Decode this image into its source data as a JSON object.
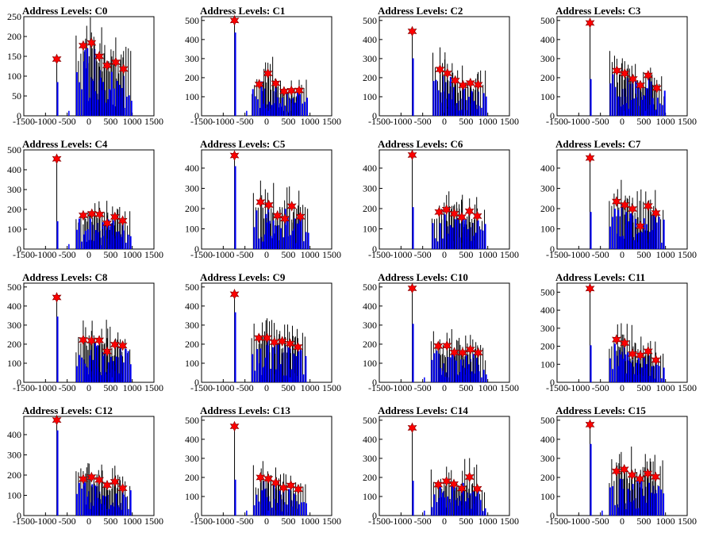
{
  "figure": {
    "bar_color": "#0000ff",
    "outline_color": "#000000",
    "marker_color": "#ff0000",
    "marker_stroke": "#880000"
  },
  "chart_data": [
    {
      "type": "bar",
      "title": "Address Levels: C0",
      "xlim": [
        -1500,
        1500
      ],
      "ylim": [
        0,
        250
      ],
      "xticks": [
        "-1500",
        "-1000",
        "-500",
        "0",
        "500",
        "1000",
        "1500"
      ],
      "yticks": [
        "0",
        "50",
        "100",
        "150",
        "200",
        "250"
      ],
      "peaks": [
        {
          "x": -740,
          "y": 143
        },
        {
          "x": -130,
          "y": 177
        },
        {
          "x": 60,
          "y": 184
        },
        {
          "x": 240,
          "y": 150
        },
        {
          "x": 420,
          "y": 127
        },
        {
          "x": 620,
          "y": 135
        },
        {
          "x": 800,
          "y": 118
        }
      ]
    },
    {
      "type": "bar",
      "title": "Address Levels: C1",
      "xlim": [
        -1500,
        1500
      ],
      "ylim": [
        0,
        520
      ],
      "xticks": [
        "-1500",
        "-1000",
        "-500",
        "0",
        "500",
        "1000",
        "1500"
      ],
      "yticks": [
        "0",
        "100",
        "200",
        "300",
        "400",
        "500"
      ],
      "peaks": [
        {
          "x": -740,
          "y": 500
        },
        {
          "x": -170,
          "y": 165
        },
        {
          "x": 30,
          "y": 222
        },
        {
          "x": 210,
          "y": 170
        },
        {
          "x": 400,
          "y": 128
        },
        {
          "x": 570,
          "y": 132
        },
        {
          "x": 750,
          "y": 133
        }
      ]
    },
    {
      "type": "bar",
      "title": "Address Levels: C2",
      "xlim": [
        -1500,
        1500
      ],
      "ylim": [
        0,
        520
      ],
      "xticks": [
        "-1500",
        "-1000",
        "-500",
        "0",
        "500",
        "1000",
        "1500"
      ],
      "yticks": [
        "0",
        "100",
        "200",
        "300",
        "400",
        "500"
      ],
      "peaks": [
        {
          "x": -740,
          "y": 443
        },
        {
          "x": -100,
          "y": 243
        },
        {
          "x": 70,
          "y": 223
        },
        {
          "x": 250,
          "y": 185
        },
        {
          "x": 430,
          "y": 160
        },
        {
          "x": 600,
          "y": 172
        },
        {
          "x": 780,
          "y": 163
        }
      ]
    },
    {
      "type": "bar",
      "title": "Address Levels: C3",
      "xlim": [
        -1500,
        1500
      ],
      "ylim": [
        0,
        520
      ],
      "xticks": [
        "-1500",
        "-1000",
        "-500",
        "0",
        "500",
        "1000",
        "1500"
      ],
      "yticks": [
        "0",
        "100",
        "200",
        "300",
        "400",
        "500"
      ],
      "peaks": [
        {
          "x": -740,
          "y": 487
        },
        {
          "x": -120,
          "y": 237
        },
        {
          "x": 60,
          "y": 222
        },
        {
          "x": 250,
          "y": 193
        },
        {
          "x": 420,
          "y": 160
        },
        {
          "x": 600,
          "y": 212
        },
        {
          "x": 800,
          "y": 145
        }
      ]
    },
    {
      "type": "bar",
      "title": "Address Levels: C4",
      "xlim": [
        -1500,
        1500
      ],
      "ylim": [
        0,
        500
      ],
      "xticks": [
        "-1500",
        "-1000",
        "-500",
        "0",
        "500",
        "1000",
        "1500"
      ],
      "yticks": [
        "0",
        "100",
        "200",
        "300",
        "400",
        "500"
      ],
      "peaks": [
        {
          "x": -740,
          "y": 455
        },
        {
          "x": -130,
          "y": 170
        },
        {
          "x": 70,
          "y": 178
        },
        {
          "x": 250,
          "y": 175
        },
        {
          "x": 420,
          "y": 130
        },
        {
          "x": 600,
          "y": 162
        },
        {
          "x": 780,
          "y": 143
        }
      ]
    },
    {
      "type": "bar",
      "title": "Address Levels: C5",
      "xlim": [
        -1500,
        1500
      ],
      "ylim": [
        0,
        490
      ],
      "xticks": [
        "-1500",
        "-1000",
        "-500",
        "0",
        "500",
        "1000",
        "1500"
      ],
      "yticks": [
        "0",
        "100",
        "200",
        "300",
        "400"
      ],
      "peaks": [
        {
          "x": -740,
          "y": 462
        },
        {
          "x": -140,
          "y": 232
        },
        {
          "x": 50,
          "y": 218
        },
        {
          "x": 250,
          "y": 165
        },
        {
          "x": 420,
          "y": 150
        },
        {
          "x": 580,
          "y": 212
        },
        {
          "x": 780,
          "y": 160
        }
      ]
    },
    {
      "type": "bar",
      "title": "Address Levels: C6",
      "xlim": [
        -1500,
        1500
      ],
      "ylim": [
        0,
        490
      ],
      "xticks": [
        "-1500",
        "-1000",
        "-500",
        "0",
        "500",
        "1000",
        "1500"
      ],
      "yticks": [
        "0",
        "100",
        "200",
        "300",
        "400"
      ],
      "peaks": [
        {
          "x": -740,
          "y": 465
        },
        {
          "x": -120,
          "y": 183
        },
        {
          "x": 50,
          "y": 195
        },
        {
          "x": 230,
          "y": 175
        },
        {
          "x": 400,
          "y": 158
        },
        {
          "x": 580,
          "y": 187
        },
        {
          "x": 760,
          "y": 163
        }
      ]
    },
    {
      "type": "bar",
      "title": "Address Levels: C7",
      "xlim": [
        -1500,
        1500
      ],
      "ylim": [
        0,
        490
      ],
      "xticks": [
        "-1500",
        "-1000",
        "-500",
        "0",
        "500",
        "1000",
        "1500"
      ],
      "yticks": [
        "0",
        "100",
        "200",
        "300",
        "400"
      ],
      "peaks": [
        {
          "x": -740,
          "y": 450
        },
        {
          "x": -130,
          "y": 235
        },
        {
          "x": 60,
          "y": 218
        },
        {
          "x": 240,
          "y": 198
        },
        {
          "x": 420,
          "y": 113
        },
        {
          "x": 600,
          "y": 213
        },
        {
          "x": 780,
          "y": 178
        }
      ]
    },
    {
      "type": "bar",
      "title": "Address Levels: C8",
      "xlim": [
        -1500,
        1500
      ],
      "ylim": [
        0,
        520
      ],
      "xticks": [
        "-1500",
        "-1000",
        "-500",
        "0",
        "500",
        "1000",
        "1500"
      ],
      "yticks": [
        "0",
        "100",
        "200",
        "300",
        "400",
        "500"
      ],
      "peaks": [
        {
          "x": -740,
          "y": 445
        },
        {
          "x": -130,
          "y": 222
        },
        {
          "x": 60,
          "y": 218
        },
        {
          "x": 240,
          "y": 220
        },
        {
          "x": 420,
          "y": 162
        },
        {
          "x": 600,
          "y": 198
        },
        {
          "x": 780,
          "y": 192
        }
      ]
    },
    {
      "type": "bar",
      "title": "Address Levels: C9",
      "xlim": [
        -1500,
        1500
      ],
      "ylim": [
        0,
        520
      ],
      "xticks": [
        "-1500",
        "-1000",
        "-500",
        "0",
        "500",
        "1000",
        "1500"
      ],
      "yticks": [
        "0",
        "100",
        "200",
        "300",
        "400",
        "500"
      ],
      "peaks": [
        {
          "x": -740,
          "y": 462
        },
        {
          "x": -180,
          "y": 232
        },
        {
          "x": 10,
          "y": 232
        },
        {
          "x": 180,
          "y": 210
        },
        {
          "x": 360,
          "y": 215
        },
        {
          "x": 540,
          "y": 203
        },
        {
          "x": 720,
          "y": 185
        }
      ]
    },
    {
      "type": "bar",
      "title": "Address Levels: C10",
      "xlim": [
        -1500,
        1500
      ],
      "ylim": [
        0,
        520
      ],
      "xticks": [
        "-1500",
        "-1000",
        "-500",
        "0",
        "500",
        "1000",
        "1500"
      ],
      "yticks": [
        "0",
        "100",
        "200",
        "300",
        "400",
        "500"
      ],
      "peaks": [
        {
          "x": -740,
          "y": 493
        },
        {
          "x": -140,
          "y": 190
        },
        {
          "x": 60,
          "y": 192
        },
        {
          "x": 230,
          "y": 157
        },
        {
          "x": 420,
          "y": 155
        },
        {
          "x": 600,
          "y": 172
        },
        {
          "x": 780,
          "y": 155
        }
      ]
    },
    {
      "type": "bar",
      "title": "Address Levels: C11",
      "xlim": [
        -1500,
        1500
      ],
      "ylim": [
        0,
        550
      ],
      "xticks": [
        "-1500",
        "-1000",
        "-500",
        "0",
        "500",
        "1000",
        "1500"
      ],
      "yticks": [
        "0",
        "100",
        "200",
        "300",
        "400",
        "500"
      ],
      "peaks": [
        {
          "x": -740,
          "y": 520
        },
        {
          "x": -130,
          "y": 237
        },
        {
          "x": 60,
          "y": 218
        },
        {
          "x": 240,
          "y": 157
        },
        {
          "x": 420,
          "y": 150
        },
        {
          "x": 600,
          "y": 172
        },
        {
          "x": 780,
          "y": 123
        }
      ]
    },
    {
      "type": "bar",
      "title": "Address Levels: C12",
      "xlim": [
        -1500,
        1500
      ],
      "ylim": [
        0,
        490
      ],
      "xticks": [
        "-1500",
        "-1000",
        "-500",
        "0",
        "500",
        "1000",
        "1500"
      ],
      "yticks": [
        "0",
        "100",
        "200",
        "300",
        "400"
      ],
      "peaks": [
        {
          "x": -740,
          "y": 472
        },
        {
          "x": -130,
          "y": 180
        },
        {
          "x": 60,
          "y": 190
        },
        {
          "x": 240,
          "y": 176
        },
        {
          "x": 420,
          "y": 150
        },
        {
          "x": 600,
          "y": 167
        },
        {
          "x": 780,
          "y": 135
        }
      ]
    },
    {
      "type": "bar",
      "title": "Address Levels: C13",
      "xlim": [
        -1500,
        1500
      ],
      "ylim": [
        0,
        520
      ],
      "xticks": [
        "-1500",
        "-1000",
        "-500",
        "0",
        "500",
        "1000",
        "1500"
      ],
      "yticks": [
        "0",
        "100",
        "200",
        "300",
        "400",
        "500"
      ],
      "peaks": [
        {
          "x": -740,
          "y": 468
        },
        {
          "x": -140,
          "y": 200
        },
        {
          "x": 40,
          "y": 193
        },
        {
          "x": 210,
          "y": 172
        },
        {
          "x": 390,
          "y": 145
        },
        {
          "x": 560,
          "y": 158
        },
        {
          "x": 730,
          "y": 138
        }
      ]
    },
    {
      "type": "bar",
      "title": "Address Levels: C14",
      "xlim": [
        -1500,
        1500
      ],
      "ylim": [
        0,
        520
      ],
      "xticks": [
        "-1500",
        "-1000",
        "-500",
        "0",
        "500",
        "1000",
        "1500"
      ],
      "yticks": [
        "0",
        "100",
        "200",
        "300",
        "400",
        "500"
      ],
      "peaks": [
        {
          "x": -740,
          "y": 460
        },
        {
          "x": -140,
          "y": 162
        },
        {
          "x": 50,
          "y": 180
        },
        {
          "x": 220,
          "y": 165
        },
        {
          "x": 400,
          "y": 142
        },
        {
          "x": 580,
          "y": 202
        },
        {
          "x": 760,
          "y": 140
        }
      ]
    },
    {
      "type": "bar",
      "title": "Address Levels: C15",
      "xlim": [
        -1500,
        1500
      ],
      "ylim": [
        0,
        520
      ],
      "xticks": [
        "-1500",
        "-1000",
        "-500",
        "0",
        "500",
        "1000",
        "1500"
      ],
      "yticks": [
        "0",
        "100",
        "200",
        "300",
        "400",
        "500"
      ],
      "peaks": [
        {
          "x": -740,
          "y": 477
        },
        {
          "x": -130,
          "y": 232
        },
        {
          "x": 50,
          "y": 242
        },
        {
          "x": 230,
          "y": 213
        },
        {
          "x": 410,
          "y": 192
        },
        {
          "x": 590,
          "y": 220
        },
        {
          "x": 770,
          "y": 203
        }
      ]
    }
  ]
}
